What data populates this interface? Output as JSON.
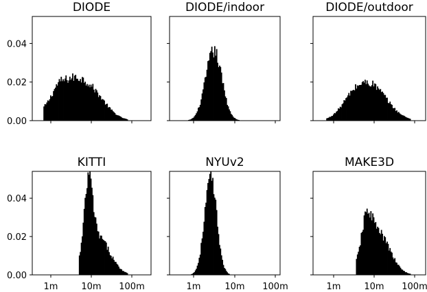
{
  "chart_data": [
    {
      "type": "histogram",
      "title": "DIODE",
      "x_scale": "log",
      "x_ticks": [
        "1m",
        "10m",
        "100m"
      ],
      "y_ticks": [
        "0.00",
        "0.02",
        "0.04"
      ],
      "ylim": [
        0,
        0.054
      ],
      "x_range_m": [
        0.5,
        200
      ],
      "peaks": [
        {
          "center_m": 3.0,
          "sigma_log10": 0.45,
          "weight": 0.02
        },
        {
          "center_m": 12.0,
          "sigma_log10": 0.35,
          "weight": 0.008
        },
        {
          "center_m": 1.5,
          "sigma_log10": 0.12,
          "weight": 0.003
        }
      ],
      "support_m": [
        0.65,
        80
      ]
    },
    {
      "type": "histogram",
      "title": "DIODE/indoor",
      "x_scale": "log",
      "x_ticks": [
        "1m",
        "10m",
        "100m"
      ],
      "y_ticks": [
        "0.00",
        "0.02",
        "0.04"
      ],
      "ylim": [
        0,
        0.054
      ],
      "x_range_m": [
        0.5,
        200
      ],
      "peaks": [
        {
          "center_m": 3.1,
          "sigma_log10": 0.2,
          "weight": 0.036
        }
      ],
      "support_m": [
        0.7,
        22
      ]
    },
    {
      "type": "histogram",
      "title": "DIODE/outdoor",
      "x_scale": "log",
      "x_ticks": [
        "1m",
        "10m",
        "100m"
      ],
      "y_ticks": [
        "0.00",
        "0.02",
        "0.04"
      ],
      "ylim": [
        0,
        0.054
      ],
      "x_range_m": [
        0.5,
        200
      ],
      "peaks": [
        {
          "center_m": 7.5,
          "sigma_log10": 0.42,
          "weight": 0.019
        },
        {
          "center_m": 2.5,
          "sigma_log10": 0.25,
          "weight": 0.004
        }
      ],
      "support_m": [
        0.65,
        80
      ]
    },
    {
      "type": "histogram",
      "title": "KITTI",
      "x_scale": "log",
      "x_ticks": [
        "1m",
        "10m",
        "100m"
      ],
      "y_ticks": [
        "0.00",
        "0.02",
        "0.04"
      ],
      "ylim": [
        0,
        0.054
      ],
      "x_range_m": [
        0.5,
        200
      ],
      "peaks": [
        {
          "center_m": 8.5,
          "sigma_log10": 0.1,
          "weight": 0.036
        },
        {
          "center_m": 14.0,
          "sigma_log10": 0.3,
          "weight": 0.02
        }
      ],
      "support_m": [
        5.0,
        80
      ]
    },
    {
      "type": "histogram",
      "title": "NYUv2",
      "x_scale": "log",
      "x_ticks": [
        "1m",
        "10m",
        "100m"
      ],
      "y_ticks": [
        "0.00",
        "0.02",
        "0.04"
      ],
      "ylim": [
        0,
        0.054
      ],
      "x_range_m": [
        0.5,
        200
      ],
      "peaks": [
        {
          "center_m": 2.6,
          "sigma_log10": 0.15,
          "weight": 0.05
        }
      ],
      "support_m": [
        0.7,
        10
      ]
    },
    {
      "type": "histogram",
      "title": "MAKE3D",
      "x_scale": "log",
      "x_ticks": [
        "1m",
        "10m",
        "100m"
      ],
      "y_ticks": [
        "0.00",
        "0.02",
        "0.04"
      ],
      "ylim": [
        0,
        0.054
      ],
      "x_range_m": [
        0.5,
        200
      ],
      "peaks": [
        {
          "center_m": 6.5,
          "sigma_log10": 0.13,
          "weight": 0.018
        },
        {
          "center_m": 12.0,
          "sigma_log10": 0.3,
          "weight": 0.022
        }
      ],
      "support_m": [
        3.5,
        80
      ]
    }
  ]
}
